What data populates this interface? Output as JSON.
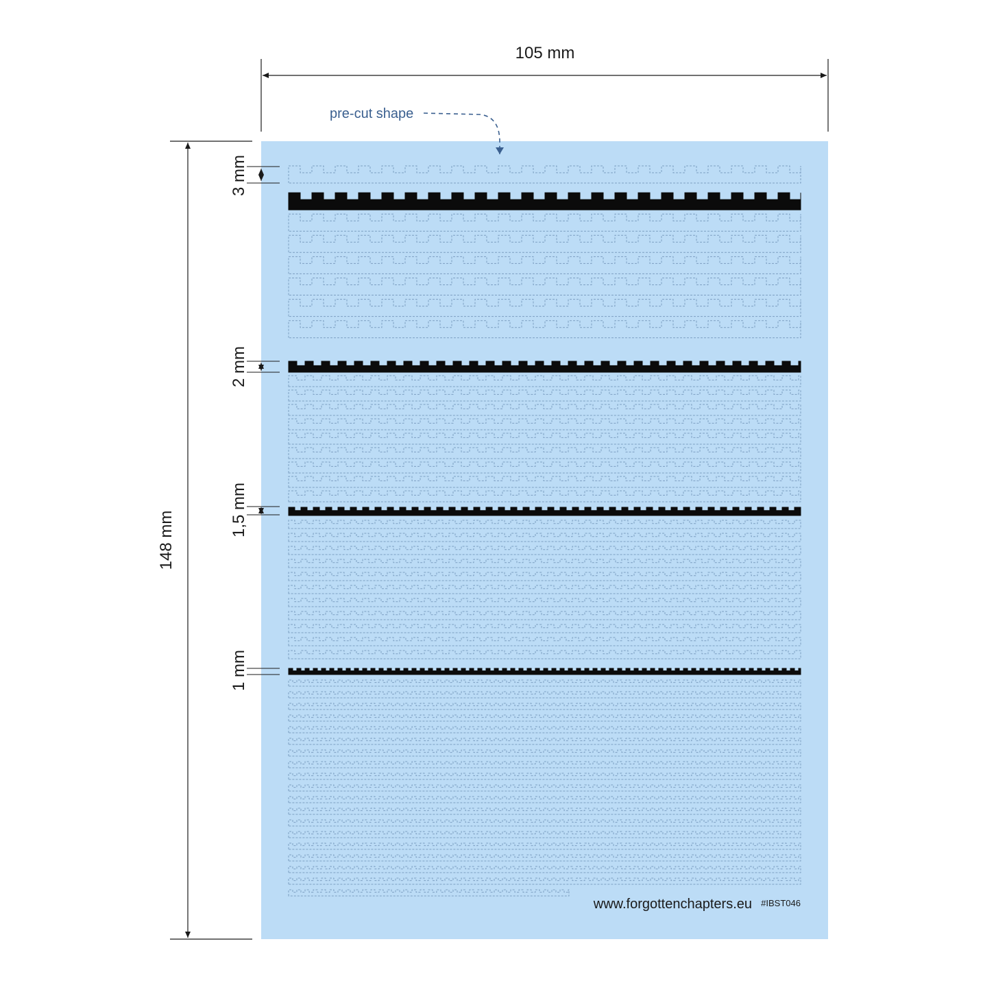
{
  "diagram": {
    "width_label": "105 mm",
    "height_label": "148 mm",
    "callout": "pre-cut shape",
    "website": "www.forgottenchapters.eu",
    "product_code": "#IBST046",
    "sections": [
      {
        "label": "3 mm",
        "strip_count": 8
      },
      {
        "label": "2 mm",
        "strip_count": 10
      },
      {
        "label": "1,5 mm",
        "strip_count": 12
      },
      {
        "label": "1 mm",
        "strip_count": 20
      }
    ],
    "colors": {
      "sheet": "#bcdcf6",
      "strip": "#0b0b0b",
      "cut_line": "#7d9fc2",
      "callout": "#3a5f8f",
      "dimension": "#1a1a1a"
    }
  }
}
